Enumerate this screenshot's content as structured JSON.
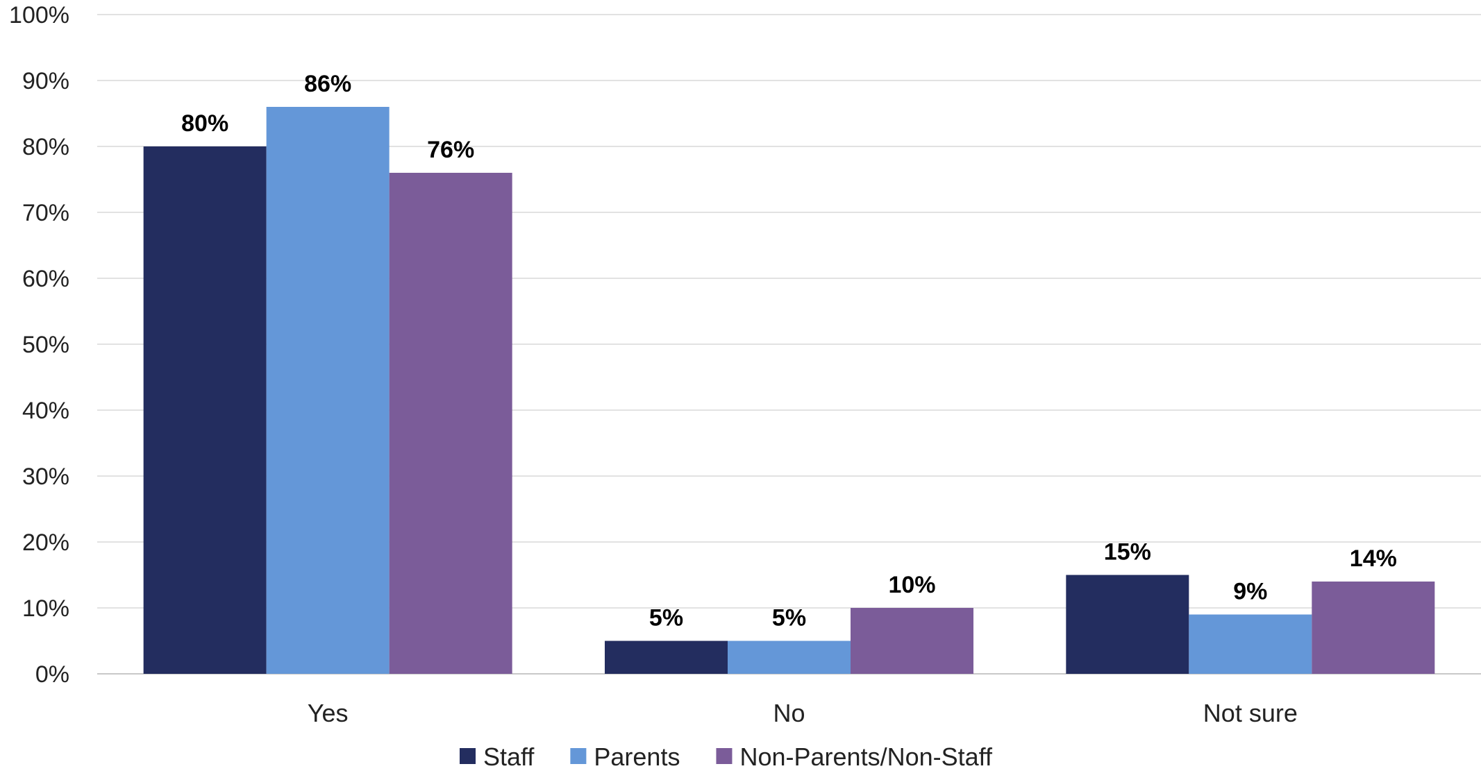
{
  "chart_data": {
    "type": "bar",
    "categories": [
      "Yes",
      "No",
      "Not sure"
    ],
    "series": [
      {
        "name": "Staff",
        "values": [
          80,
          5,
          15
        ],
        "labels": [
          "80%",
          "5%",
          "15%"
        ],
        "color": "#232d5f"
      },
      {
        "name": "Parents",
        "values": [
          86,
          5,
          9
        ],
        "labels": [
          "86%",
          "5%",
          "9%"
        ],
        "color": "#6497d8"
      },
      {
        "name": "Non-Parents/Non-Staff",
        "values": [
          76,
          10,
          14
        ],
        "labels": [
          "76%",
          "10%",
          "14%"
        ],
        "color": "#7b5c99"
      }
    ],
    "yticks": [
      "0%",
      "10%",
      "20%",
      "30%",
      "40%",
      "50%",
      "60%",
      "70%",
      "80%",
      "90%",
      "100%"
    ],
    "ylim": [
      0,
      100
    ],
    "grid": true,
    "legend": "bottom"
  }
}
